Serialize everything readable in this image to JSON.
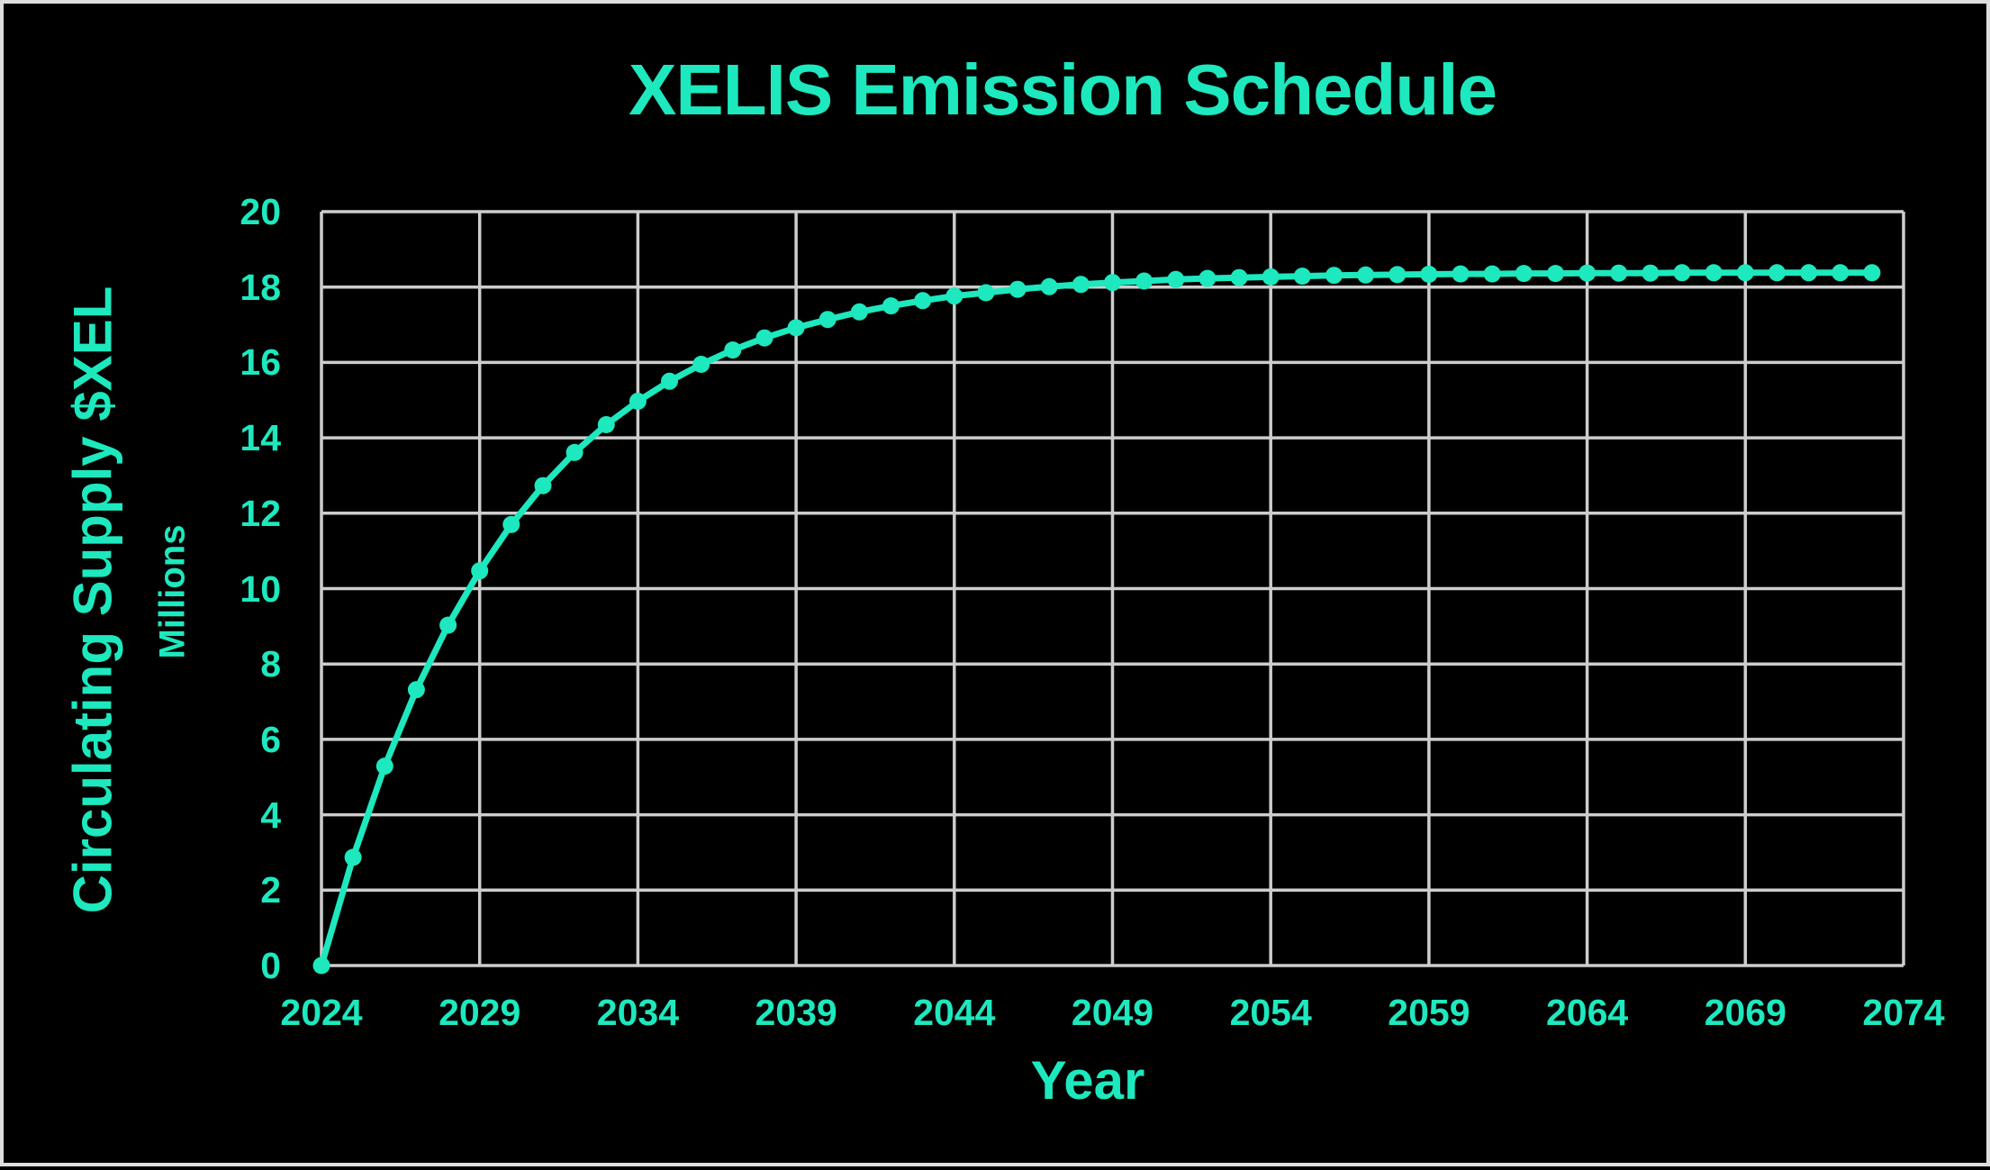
{
  "page": {
    "background": "#000000",
    "frame_border_color": "#dedede"
  },
  "chart_data": {
    "type": "line",
    "title": "XELIS Emission Schedule",
    "xlabel": "Year",
    "ylabel": "Circulating Supply $XEL",
    "ylabel_units": "Millions",
    "xlim": [
      2024,
      2074
    ],
    "ylim": [
      0,
      20
    ],
    "x_ticks": [
      "2024",
      "2029",
      "2034",
      "2039",
      "2044",
      "2049",
      "2054",
      "2059",
      "2064",
      "2069",
      "2074"
    ],
    "y_ticks": [
      "0",
      "2",
      "4",
      "6",
      "8",
      "10",
      "12",
      "14",
      "16",
      "18",
      "20"
    ],
    "grid": true,
    "legend": false,
    "series": [
      {
        "name": "Circulating Supply $XEL (Millions)",
        "x": [
          2024,
          2025,
          2026,
          2027,
          2028,
          2029,
          2030,
          2031,
          2032,
          2033,
          2034,
          2035,
          2036,
          2037,
          2038,
          2039,
          2040,
          2041,
          2042,
          2043,
          2044,
          2045,
          2046,
          2047,
          2048,
          2049,
          2050,
          2051,
          2052,
          2053,
          2054,
          2055,
          2056,
          2057,
          2058,
          2059,
          2060,
          2061,
          2062,
          2063,
          2064,
          2065,
          2066,
          2067,
          2068,
          2069,
          2070,
          2071,
          2072,
          2073
        ],
        "y": [
          0,
          2.87,
          5.29,
          7.32,
          9.03,
          10.47,
          11.7,
          12.73,
          13.61,
          14.35,
          14.97,
          15.5,
          15.95,
          16.33,
          16.65,
          16.92,
          17.14,
          17.34,
          17.5,
          17.64,
          17.76,
          17.85,
          17.94,
          18.01,
          18.07,
          18.12,
          18.16,
          18.2,
          18.23,
          18.25,
          18.27,
          18.29,
          18.31,
          18.32,
          18.33,
          18.34,
          18.35,
          18.35,
          18.36,
          18.36,
          18.37,
          18.37,
          18.37,
          18.38,
          18.38,
          18.38,
          18.38,
          18.38,
          18.38,
          18.38
        ]
      }
    ],
    "colors": {
      "accent": "#1DE8BE",
      "grid": "#CDCDCD",
      "background": "#000000"
    }
  }
}
